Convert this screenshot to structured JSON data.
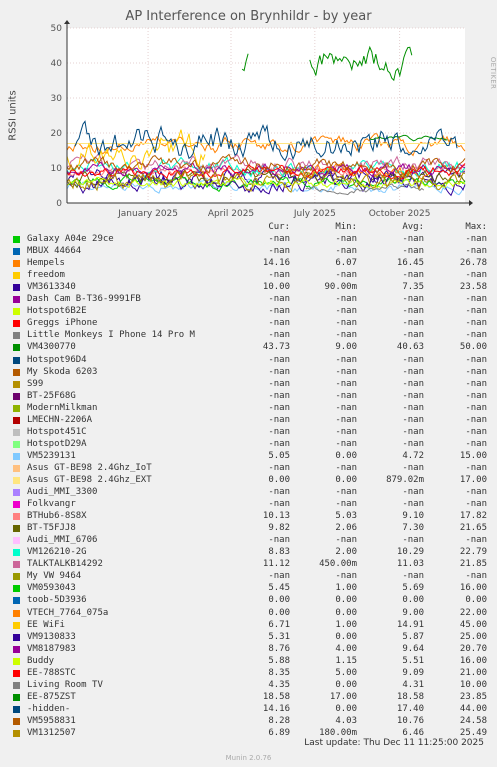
{
  "chart_data": {
    "type": "line",
    "title": "AP Interference on Brynhildr - by year",
    "ylabel": "RSSI units",
    "side_label": "RRDTOOL / TOBI OETIKER",
    "ylim": [
      0,
      50
    ],
    "yticks": [
      "0",
      "10",
      "20",
      "30",
      "40",
      "50"
    ],
    "xlim": [
      "2024-10-05",
      "2025-12-11"
    ],
    "xticks": [
      {
        "label": "January 2025",
        "date": "2025-01-01"
      },
      {
        "label": "April 2025",
        "date": "2025-04-01"
      },
      {
        "label": "July 2025",
        "date": "2025-07-01"
      },
      {
        "label": "October 2025",
        "date": "2025-10-01"
      }
    ],
    "grid": true,
    "columns": {
      "cur": "Cur:",
      "min": "Min:",
      "avg": "Avg:",
      "max": "Max:"
    },
    "series": [
      {
        "name": "Galaxy A04e 29ce",
        "color": "#00cc00",
        "cur": "-nan",
        "min": "-nan",
        "avg": "-nan",
        "max": "-nan"
      },
      {
        "name": "MBUX 44664",
        "color": "#0066b3",
        "cur": "-nan",
        "min": "-nan",
        "avg": "-nan",
        "max": "-nan"
      },
      {
        "name": "Hempels",
        "color": "#ff8000",
        "cur": "14.16",
        "min": "6.07",
        "avg": "16.45",
        "max": "26.78"
      },
      {
        "name": "freedom",
        "color": "#ffcc00",
        "cur": "-nan",
        "min": "-nan",
        "avg": "-nan",
        "max": "-nan"
      },
      {
        "name": "VM3613340",
        "color": "#330099",
        "cur": "10.00",
        "min": "90.00m",
        "avg": "7.35",
        "max": "23.58"
      },
      {
        "name": "Dash Cam B-T36-9991FB",
        "color": "#990099",
        "cur": "-nan",
        "min": "-nan",
        "avg": "-nan",
        "max": "-nan"
      },
      {
        "name": "Hotspot6B2E",
        "color": "#ccff00",
        "cur": "-nan",
        "min": "-nan",
        "avg": "-nan",
        "max": "-nan"
      },
      {
        "name": "Greggs iPhone",
        "color": "#ff0000",
        "cur": "-nan",
        "min": "-nan",
        "avg": "-nan",
        "max": "-nan"
      },
      {
        "name": "Little Monkeys I Phone 14 Pro M",
        "color": "#808080",
        "cur": "-nan",
        "min": "-nan",
        "avg": "-nan",
        "max": "-nan"
      },
      {
        "name": "VM4300770",
        "color": "#008f00",
        "cur": "43.73",
        "min": "9.00",
        "avg": "40.63",
        "max": "50.00"
      },
      {
        "name": "Hotspot96D4",
        "color": "#00487d",
        "cur": "-nan",
        "min": "-nan",
        "avg": "-nan",
        "max": "-nan"
      },
      {
        "name": "My Skoda 6203",
        "color": "#b35a00",
        "cur": "-nan",
        "min": "-nan",
        "avg": "-nan",
        "max": "-nan"
      },
      {
        "name": "S99",
        "color": "#b38f00",
        "cur": "-nan",
        "min": "-nan",
        "avg": "-nan",
        "max": "-nan"
      },
      {
        "name": "BT-25F68G",
        "color": "#6b006b",
        "cur": "-nan",
        "min": "-nan",
        "avg": "-nan",
        "max": "-nan"
      },
      {
        "name": "ModernMilkman",
        "color": "#8fb300",
        "cur": "-nan",
        "min": "-nan",
        "avg": "-nan",
        "max": "-nan"
      },
      {
        "name": "LMECHN-2206A",
        "color": "#b30000",
        "cur": "-nan",
        "min": "-nan",
        "avg": "-nan",
        "max": "-nan"
      },
      {
        "name": "Hotspot451C",
        "color": "#bebebe",
        "cur": "-nan",
        "min": "-nan",
        "avg": "-nan",
        "max": "-nan"
      },
      {
        "name": "HotspotD29A",
        "color": "#80ff80",
        "cur": "-nan",
        "min": "-nan",
        "avg": "-nan",
        "max": "-nan"
      },
      {
        "name": "VM5239131",
        "color": "#80c9ff",
        "cur": "5.05",
        "min": "0.00",
        "avg": "4.72",
        "max": "15.00"
      },
      {
        "name": "Asus GT-BE98 2.4Ghz_IoT",
        "color": "#ffc080",
        "cur": "-nan",
        "min": "-nan",
        "avg": "-nan",
        "max": "-nan"
      },
      {
        "name": "Asus GT-BE98 2.4Ghz_EXT",
        "color": "#ffe680",
        "cur": "0.00",
        "min": "0.00",
        "avg": "879.02m",
        "max": "17.00"
      },
      {
        "name": "Audi_MMI_3300",
        "color": "#aa80ff",
        "cur": "-nan",
        "min": "-nan",
        "avg": "-nan",
        "max": "-nan"
      },
      {
        "name": "Folkvangr",
        "color": "#ee00cc",
        "cur": "-nan",
        "min": "-nan",
        "avg": "-nan",
        "max": "-nan"
      },
      {
        "name": "BTHub6-8S8X",
        "color": "#ff8080",
        "cur": "10.13",
        "min": "5.03",
        "avg": "9.10",
        "max": "17.82"
      },
      {
        "name": "BT-T5FJJ8",
        "color": "#666600",
        "cur": "9.82",
        "min": "2.06",
        "avg": "7.30",
        "max": "21.65"
      },
      {
        "name": "Audi_MMI_6706",
        "color": "#ffbfff",
        "cur": "-nan",
        "min": "-nan",
        "avg": "-nan",
        "max": "-nan"
      },
      {
        "name": "VM126210-2G",
        "color": "#00ffcc",
        "cur": "8.83",
        "min": "2.00",
        "avg": "10.29",
        "max": "22.79"
      },
      {
        "name": "TALKTALKB14292",
        "color": "#cc6699",
        "cur": "11.12",
        "min": "450.00m",
        "avg": "11.03",
        "max": "21.85"
      },
      {
        "name": "My VW 9464",
        "color": "#999900",
        "cur": "-nan",
        "min": "-nan",
        "avg": "-nan",
        "max": "-nan"
      },
      {
        "name": "VM0593043",
        "color": "#00cc00",
        "cur": "5.45",
        "min": "1.00",
        "avg": "5.69",
        "max": "16.00"
      },
      {
        "name": "toob-5D3936",
        "color": "#0066b3",
        "cur": "0.00",
        "min": "0.00",
        "avg": "0.00",
        "max": "0.00"
      },
      {
        "name": "VTECH_7764_075a",
        "color": "#ff8000",
        "cur": "0.00",
        "min": "0.00",
        "avg": "9.00",
        "max": "22.00"
      },
      {
        "name": "EE WiFi",
        "color": "#ffcc00",
        "cur": "6.71",
        "min": "1.00",
        "avg": "14.91",
        "max": "45.00"
      },
      {
        "name": "VM9130833",
        "color": "#330099",
        "cur": "5.31",
        "min": "0.00",
        "avg": "5.87",
        "max": "25.00"
      },
      {
        "name": "VM8187983",
        "color": "#990099",
        "cur": "8.76",
        "min": "4.00",
        "avg": "9.64",
        "max": "20.70"
      },
      {
        "name": "Buddy",
        "color": "#ccff00",
        "cur": "5.88",
        "min": "1.15",
        "avg": "5.51",
        "max": "16.00"
      },
      {
        "name": "EE-788STC",
        "color": "#ff0000",
        "cur": "8.35",
        "min": "5.00",
        "avg": "9.09",
        "max": "21.00"
      },
      {
        "name": "Living Room TV",
        "color": "#808080",
        "cur": "4.35",
        "min": "0.00",
        "avg": "4.31",
        "max": "10.00"
      },
      {
        "name": "EE-875ZST",
        "color": "#008f00",
        "cur": "18.58",
        "min": "17.00",
        "avg": "18.58",
        "max": "23.85"
      },
      {
        "name": "-hidden-",
        "color": "#00487d",
        "cur": "14.16",
        "min": "0.00",
        "avg": "17.40",
        "max": "44.00"
      },
      {
        "name": "VM5958831",
        "color": "#b35a00",
        "cur": "8.28",
        "min": "4.03",
        "avg": "10.76",
        "max": "24.58"
      },
      {
        "name": "VM1312507",
        "color": "#b38f00",
        "cur": "6.89",
        "min": "180.00m",
        "avg": "6.46",
        "max": "25.49"
      }
    ]
  },
  "last_update": "Last update:  Thu Dec 11 11:25:00 2025",
  "footer": "Munin 2.0.76"
}
